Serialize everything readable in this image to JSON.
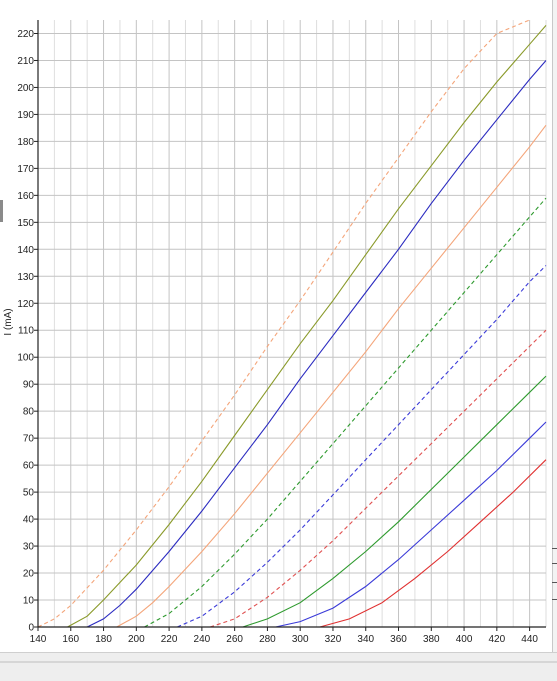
{
  "chart_data": {
    "type": "line",
    "ylabel": "I (mA)",
    "xlabel": "",
    "xlim": [
      140,
      450
    ],
    "ylim": [
      0,
      225
    ],
    "x_ticks": [
      140,
      160,
      180,
      200,
      220,
      240,
      260,
      280,
      300,
      320,
      340,
      360,
      380,
      400,
      420,
      440
    ],
    "y_ticks": [
      0,
      10,
      20,
      30,
      40,
      50,
      60,
      70,
      80,
      90,
      100,
      110,
      120,
      130,
      140,
      150,
      160,
      170,
      180,
      190,
      200,
      210,
      220
    ],
    "grid": true,
    "legend": "none",
    "series": [
      {
        "color": "#f4a57a",
        "style": "dashed",
        "points": [
          [
            140,
            0
          ],
          [
            150,
            3
          ],
          [
            160,
            8
          ],
          [
            180,
            21
          ],
          [
            200,
            36
          ],
          [
            220,
            52
          ],
          [
            240,
            69
          ],
          [
            260,
            86
          ],
          [
            280,
            104
          ],
          [
            300,
            121
          ],
          [
            320,
            139
          ],
          [
            340,
            157
          ],
          [
            360,
            174
          ],
          [
            380,
            191
          ],
          [
            400,
            207
          ],
          [
            420,
            220
          ],
          [
            440,
            225
          ]
        ]
      },
      {
        "color": "#8a9a2a",
        "style": "solid",
        "points": [
          [
            158,
            0
          ],
          [
            170,
            4
          ],
          [
            180,
            10
          ],
          [
            200,
            23
          ],
          [
            220,
            38
          ],
          [
            240,
            54
          ],
          [
            260,
            71
          ],
          [
            280,
            88
          ],
          [
            300,
            105
          ],
          [
            320,
            121
          ],
          [
            340,
            138
          ],
          [
            360,
            155
          ],
          [
            380,
            171
          ],
          [
            400,
            187
          ],
          [
            420,
            202
          ],
          [
            440,
            216
          ],
          [
            450,
            223
          ]
        ]
      },
      {
        "color": "#2b2bc0",
        "style": "solid",
        "points": [
          [
            170,
            0
          ],
          [
            180,
            3
          ],
          [
            190,
            8
          ],
          [
            200,
            14
          ],
          [
            220,
            28
          ],
          [
            240,
            43
          ],
          [
            260,
            59
          ],
          [
            280,
            75
          ],
          [
            300,
            92
          ],
          [
            320,
            108
          ],
          [
            340,
            124
          ],
          [
            360,
            140
          ],
          [
            380,
            157
          ],
          [
            400,
            173
          ],
          [
            420,
            188
          ],
          [
            440,
            203
          ],
          [
            450,
            210
          ]
        ]
      },
      {
        "color": "#f4a57a",
        "style": "solid",
        "points": [
          [
            188,
            0
          ],
          [
            200,
            4
          ],
          [
            210,
            9
          ],
          [
            220,
            15
          ],
          [
            240,
            28
          ],
          [
            260,
            42
          ],
          [
            280,
            57
          ],
          [
            300,
            72
          ],
          [
            320,
            87
          ],
          [
            340,
            102
          ],
          [
            360,
            118
          ],
          [
            380,
            133
          ],
          [
            400,
            148
          ],
          [
            420,
            163
          ],
          [
            440,
            178
          ],
          [
            450,
            186
          ]
        ]
      },
      {
        "color": "#2e9a2e",
        "style": "dashed",
        "points": [
          [
            205,
            0
          ],
          [
            220,
            5
          ],
          [
            240,
            15
          ],
          [
            260,
            27
          ],
          [
            280,
            40
          ],
          [
            300,
            54
          ],
          [
            320,
            68
          ],
          [
            340,
            82
          ],
          [
            360,
            96
          ],
          [
            380,
            110
          ],
          [
            400,
            124
          ],
          [
            420,
            138
          ],
          [
            440,
            152
          ],
          [
            450,
            159
          ]
        ]
      },
      {
        "color": "#3a3ad8",
        "style": "dashed",
        "points": [
          [
            225,
            0
          ],
          [
            240,
            4
          ],
          [
            260,
            13
          ],
          [
            280,
            24
          ],
          [
            300,
            36
          ],
          [
            320,
            49
          ],
          [
            340,
            62
          ],
          [
            360,
            75
          ],
          [
            380,
            88
          ],
          [
            400,
            101
          ],
          [
            420,
            114
          ],
          [
            440,
            128
          ],
          [
            450,
            134
          ]
        ]
      },
      {
        "color": "#e05050",
        "style": "dashed",
        "points": [
          [
            245,
            0
          ],
          [
            260,
            3
          ],
          [
            280,
            11
          ],
          [
            300,
            21
          ],
          [
            320,
            32
          ],
          [
            340,
            44
          ],
          [
            360,
            56
          ],
          [
            380,
            68
          ],
          [
            400,
            80
          ],
          [
            420,
            92
          ],
          [
            440,
            104
          ],
          [
            450,
            110
          ]
        ]
      },
      {
        "color": "#2e9a2e",
        "style": "solid",
        "points": [
          [
            265,
            0
          ],
          [
            280,
            3
          ],
          [
            300,
            9
          ],
          [
            320,
            18
          ],
          [
            340,
            28
          ],
          [
            360,
            39
          ],
          [
            380,
            51
          ],
          [
            400,
            63
          ],
          [
            420,
            75
          ],
          [
            440,
            87
          ],
          [
            450,
            93
          ]
        ]
      },
      {
        "color": "#3a3ad8",
        "style": "solid",
        "points": [
          [
            285,
            0
          ],
          [
            300,
            2
          ],
          [
            320,
            7
          ],
          [
            340,
            15
          ],
          [
            360,
            25
          ],
          [
            380,
            36
          ],
          [
            400,
            47
          ],
          [
            420,
            58
          ],
          [
            440,
            70
          ],
          [
            450,
            76
          ]
        ]
      },
      {
        "color": "#e03030",
        "style": "solid",
        "points": [
          [
            312,
            0
          ],
          [
            330,
            3
          ],
          [
            350,
            9
          ],
          [
            370,
            18
          ],
          [
            390,
            28
          ],
          [
            410,
            39
          ],
          [
            430,
            50
          ],
          [
            450,
            62
          ]
        ]
      }
    ]
  }
}
